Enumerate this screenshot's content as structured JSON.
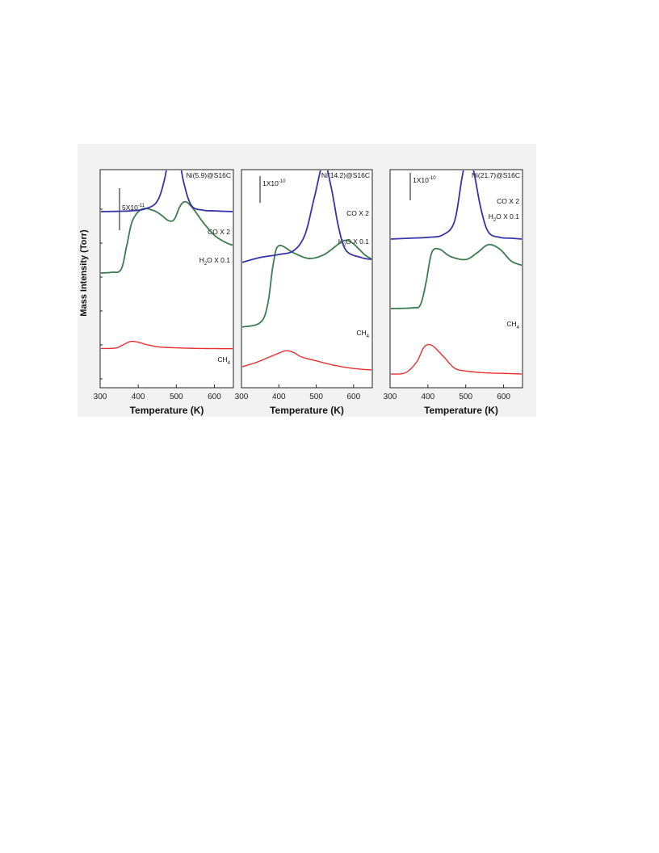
{
  "figure": {
    "ylabel": "Mass Intensity  (Torr)",
    "xlabel": "Temperature (K)",
    "background_color": "#f2f2f2"
  },
  "chart_data": [
    {
      "type": "line",
      "title": "Ni(5.9)@S16C",
      "xlabel": "Temperature (K)",
      "ylabel": "Mass Intensity  (Torr)",
      "xlim": [
        300,
        650
      ],
      "xticks": [
        300,
        400,
        500,
        600
      ],
      "scale_bar": {
        "label": "5X10",
        "exponent": "-11"
      },
      "series": [
        {
          "name": "CO X 2",
          "name_main": "CO X 2",
          "name_sub": "",
          "name_rest": "",
          "color": "#e8312f",
          "points": [
            [
              300,
              0.02
            ],
            [
              340,
              0.04
            ],
            [
              360,
              0.18
            ],
            [
              380,
              0.33
            ],
            [
              400,
              0.3
            ],
            [
              420,
              0.2
            ],
            [
              440,
              0.13
            ],
            [
              460,
              0.08
            ],
            [
              500,
              0.05
            ],
            [
              550,
              0.025
            ],
            [
              600,
              0.015
            ],
            [
              650,
              0.01
            ]
          ]
        },
        {
          "name": "H2O X 0.1",
          "name_main": "H",
          "name_sub": "2",
          "name_rest": "O X 0.1",
          "color": "#3b7d4e",
          "points": [
            [
              300,
              0.0
            ],
            [
              330,
              0.01
            ],
            [
              355,
              0.05
            ],
            [
              370,
              0.38
            ],
            [
              385,
              0.72
            ],
            [
              410,
              0.88
            ],
            [
              440,
              0.86
            ],
            [
              460,
              0.8
            ],
            [
              480,
              0.72
            ],
            [
              495,
              0.74
            ],
            [
              510,
              0.92
            ],
            [
              525,
              0.98
            ],
            [
              545,
              0.88
            ],
            [
              570,
              0.7
            ],
            [
              600,
              0.52
            ],
            [
              630,
              0.42
            ],
            [
              650,
              0.38
            ]
          ]
        },
        {
          "name": "CH4",
          "name_main": "CH",
          "name_sub": "4",
          "name_rest": "",
          "color": "#3535a8",
          "points": [
            [
              300,
              0.0
            ],
            [
              380,
              0.01
            ],
            [
              420,
              0.04
            ],
            [
              450,
              0.14
            ],
            [
              470,
              0.45
            ],
            [
              490,
              1.0
            ],
            [
              505,
              0.78
            ],
            [
              520,
              0.38
            ],
            [
              540,
              0.08
            ],
            [
              570,
              0.02
            ],
            [
              600,
              0.01
            ],
            [
              650,
              0.0
            ]
          ]
        }
      ]
    },
    {
      "type": "line",
      "title": "Ni(14.2)@S16C",
      "xlabel": "Temperature (K)",
      "xlim": [
        300,
        650
      ],
      "xticks": [
        300,
        400,
        500,
        600
      ],
      "scale_bar": {
        "label": "1X10",
        "exponent": "-10"
      },
      "series": [
        {
          "name": "CO X 2",
          "name_main": "CO X 2",
          "name_sub": "",
          "name_rest": "",
          "color": "#e8312f",
          "points": [
            [
              300,
              0.15
            ],
            [
              340,
              0.3
            ],
            [
              370,
              0.45
            ],
            [
              400,
              0.6
            ],
            [
              420,
              0.68
            ],
            [
              440,
              0.62
            ],
            [
              460,
              0.48
            ],
            [
              500,
              0.35
            ],
            [
              550,
              0.2
            ],
            [
              600,
              0.1
            ],
            [
              650,
              0.05
            ]
          ]
        },
        {
          "name": "H2O X 0.1",
          "name_main": "H",
          "name_sub": "2",
          "name_rest": "O X 0.1",
          "color": "#3b7d4e",
          "points": [
            [
              300,
              0.0
            ],
            [
              350,
              0.05
            ],
            [
              370,
              0.25
            ],
            [
              385,
              0.7
            ],
            [
              400,
              0.9
            ],
            [
              440,
              0.82
            ],
            [
              480,
              0.76
            ],
            [
              520,
              0.8
            ],
            [
              560,
              0.92
            ],
            [
              580,
              0.96
            ],
            [
              600,
              0.92
            ],
            [
              630,
              0.8
            ],
            [
              650,
              0.75
            ]
          ]
        },
        {
          "name": "CH4",
          "name_main": "CH",
          "name_sub": "4",
          "name_rest": "",
          "color": "#3535a8",
          "points": [
            [
              300,
              0.0
            ],
            [
              350,
              0.05
            ],
            [
              400,
              0.08
            ],
            [
              440,
              0.12
            ],
            [
              470,
              0.28
            ],
            [
              495,
              0.65
            ],
            [
              520,
              1.0
            ],
            [
              540,
              0.75
            ],
            [
              560,
              0.35
            ],
            [
              580,
              0.12
            ],
            [
              620,
              0.05
            ],
            [
              650,
              0.03
            ]
          ]
        }
      ]
    },
    {
      "type": "line",
      "title": "Ni(21.7)@S16C",
      "xlabel": "Temperature (K)",
      "xlim": [
        300,
        650
      ],
      "xticks": [
        300,
        400,
        500,
        600
      ],
      "scale_bar": {
        "label": "1X10",
        "exponent": "-10"
      },
      "series": [
        {
          "name": "CO X 2",
          "name_main": "CO X 2",
          "name_sub": "",
          "name_rest": "",
          "color": "#e8312f",
          "points": [
            [
              300,
              0.0
            ],
            [
              340,
              0.02
            ],
            [
              370,
              0.2
            ],
            [
              390,
              0.45
            ],
            [
              410,
              0.48
            ],
            [
              440,
              0.3
            ],
            [
              470,
              0.1
            ],
            [
              500,
              0.05
            ],
            [
              550,
              0.02
            ],
            [
              600,
              0.01
            ],
            [
              650,
              0.0
            ]
          ]
        },
        {
          "name": "H2O X 0.1",
          "name_main": "H",
          "name_sub": "2",
          "name_rest": "O X 0.1",
          "color": "#3b7d4e",
          "points": [
            [
              300,
              0.0
            ],
            [
              360,
              0.01
            ],
            [
              380,
              0.05
            ],
            [
              395,
              0.35
            ],
            [
              410,
              0.75
            ],
            [
              430,
              0.8
            ],
            [
              460,
              0.7
            ],
            [
              500,
              0.66
            ],
            [
              530,
              0.75
            ],
            [
              560,
              0.86
            ],
            [
              590,
              0.8
            ],
            [
              620,
              0.64
            ],
            [
              650,
              0.58
            ]
          ]
        },
        {
          "name": "CH4",
          "name_main": "CH",
          "name_sub": "4",
          "name_rest": "",
          "color": "#3535a8",
          "points": [
            [
              300,
              0.0
            ],
            [
              350,
              0.01
            ],
            [
              400,
              0.02
            ],
            [
              440,
              0.05
            ],
            [
              470,
              0.2
            ],
            [
              490,
              0.7
            ],
            [
              505,
              1.0
            ],
            [
              520,
              0.8
            ],
            [
              540,
              0.35
            ],
            [
              560,
              0.08
            ],
            [
              590,
              0.02
            ],
            [
              620,
              0.01
            ],
            [
              650,
              0.0
            ]
          ]
        }
      ]
    }
  ]
}
